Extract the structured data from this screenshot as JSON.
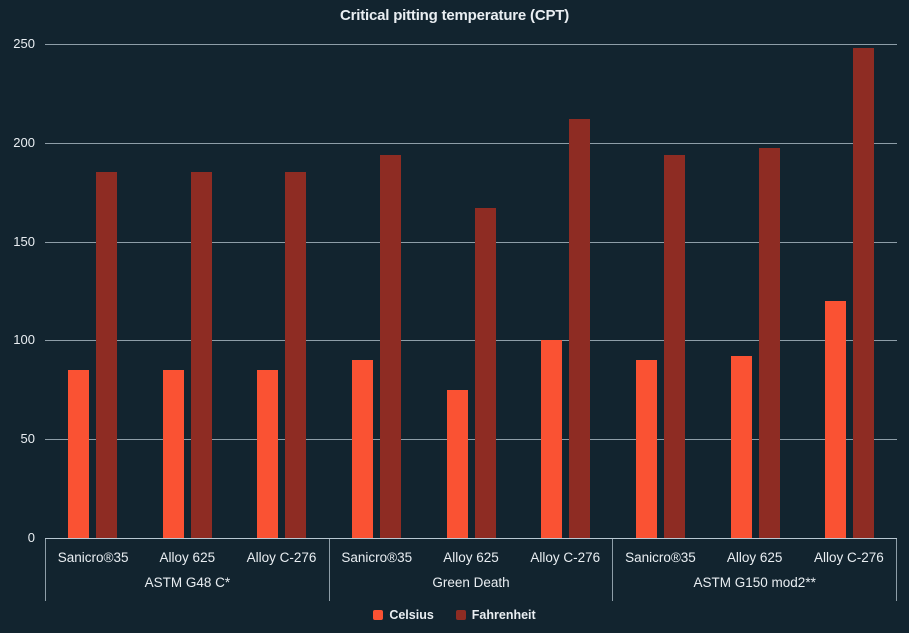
{
  "colors": {
    "background": "#12242f",
    "text": "#e9eef2",
    "grid": "#b8c7d1",
    "celsius": "#fa5233",
    "fahrenheit": "#8e2c23"
  },
  "chart_data": {
    "type": "bar",
    "title": "Critical pitting temperature (CPT)",
    "xlabel": "",
    "ylabel": "",
    "ylim": [
      0,
      250
    ],
    "yticks": [
      0,
      50,
      100,
      150,
      200,
      250
    ],
    "grid": true,
    "legend_position": "bottom",
    "groups": [
      {
        "label": "ASTM G48 C*",
        "categories": [
          "Sanicro®35",
          "Alloy 625",
          "Alloy C-276"
        ]
      },
      {
        "label": "Green Death",
        "categories": [
          "Sanicro®35",
          "Alloy 625",
          "Alloy C-276"
        ]
      },
      {
        "label": "ASTM G150 mod2**",
        "categories": [
          "Sanicro®35",
          "Alloy 625",
          "Alloy C-276"
        ]
      }
    ],
    "series": [
      {
        "name": "Celsius",
        "color": "#fa5233",
        "values": [
          85,
          85,
          85,
          90,
          75,
          100,
          90,
          92,
          120
        ]
      },
      {
        "name": "Fahrenheit",
        "color": "#8e2c23",
        "values": [
          185,
          185,
          185,
          194,
          167,
          212,
          194,
          197.6,
          248
        ]
      }
    ]
  }
}
